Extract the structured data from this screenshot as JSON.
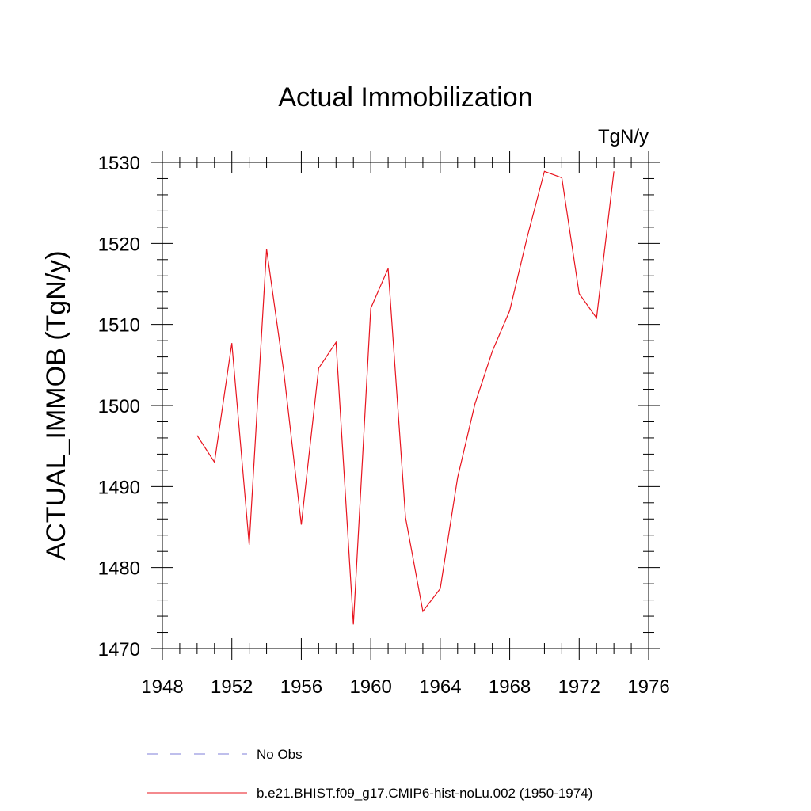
{
  "chart_data": {
    "type": "line",
    "title": "Actual Immobilization",
    "units_label": "TgN/y",
    "ylabel": "ACTUAL_IMMOB  (TgN/y)",
    "xlabel": "",
    "xlim": [
      1948,
      1976
    ],
    "ylim": [
      1470,
      1530
    ],
    "x_ticks": [
      1948,
      1952,
      1956,
      1960,
      1964,
      1968,
      1972,
      1976
    ],
    "y_ticks": [
      1470,
      1480,
      1490,
      1500,
      1510,
      1520,
      1530
    ],
    "x_tick_labels": [
      "1948",
      "1952",
      "1956",
      "1960",
      "1964",
      "1968",
      "1972",
      "1976"
    ],
    "y_tick_labels": [
      "1470",
      "1480",
      "1490",
      "1500",
      "1510",
      "1520",
      "1530"
    ],
    "grid": false,
    "legend_position": "bottom",
    "series": [
      {
        "name": "No Obs",
        "color": "#7f7fd8",
        "style": "dashed",
        "x": [],
        "y": []
      },
      {
        "name": "b.e21.BHIST.f09_g17.CMIP6-hist-noLu.002 (1950-1974)",
        "color": "#e8141e",
        "style": "solid",
        "x": [
          1950,
          1951,
          1952,
          1953,
          1954,
          1955,
          1956,
          1957,
          1958,
          1959,
          1960,
          1961,
          1962,
          1963,
          1964,
          1965,
          1966,
          1967,
          1968,
          1969,
          1970,
          1971,
          1972,
          1973,
          1974
        ],
        "y": [
          1496.3,
          1493.0,
          1507.7,
          1482.8,
          1519.3,
          1504.0,
          1485.3,
          1504.6,
          1507.8,
          1473.0,
          1512.0,
          1516.9,
          1486.2,
          1474.6,
          1477.4,
          1491.1,
          1500.2,
          1506.7,
          1511.7,
          1520.7,
          1528.9,
          1528.1,
          1513.8,
          1510.8,
          1528.9
        ]
      }
    ]
  }
}
